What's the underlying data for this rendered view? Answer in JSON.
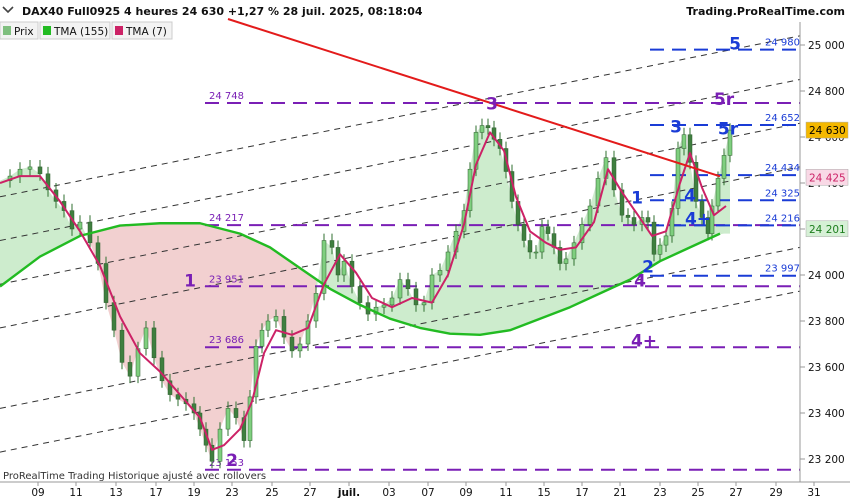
{
  "header": {
    "title": "DAX40 Full0925 4 heures 24 630 +1,27 % 28 juil. 2025, 08:18:04",
    "site": "Trading.ProRealTime.com"
  },
  "legend": [
    {
      "label": "Prix",
      "color": "#7fbf7f"
    },
    {
      "label": "TMA (155)",
      "color": "#22bb22"
    },
    {
      "label": "TMA (7)",
      "color": "#cc2266"
    }
  ],
  "footer": {
    "text": "ProRealTime Trading  Historique ajusté avec rollovers"
  },
  "chart_data": {
    "type": "line",
    "instrument": "DAX40 Full0925",
    "timeframe": "4 heures",
    "last_price": 24630,
    "change": "+1,27 %",
    "ylim": [
      23100,
      25100
    ],
    "x_tick_labels": [
      "09",
      "11",
      "13",
      "17",
      "19",
      "23",
      "25",
      "27",
      "juil.",
      "03",
      "07",
      "09",
      "11",
      "15",
      "17",
      "21",
      "23",
      "25",
      "27",
      "29",
      "31"
    ],
    "y_tick_labels": [
      "25 000",
      "24 800",
      "24 600",
      "24 400",
      "24 200",
      "24 000",
      "23 800",
      "23 600",
      "23 400",
      "23 200"
    ],
    "y_ticks": [
      25000,
      24800,
      24600,
      24400,
      24200,
      24000,
      23800,
      23600,
      23400,
      23200
    ],
    "price_path": [
      [
        0,
        24410
      ],
      [
        10,
        24430
      ],
      [
        20,
        24460
      ],
      [
        30,
        24470
      ],
      [
        40,
        24440
      ],
      [
        48,
        24370
      ],
      [
        56,
        24320
      ],
      [
        64,
        24280
      ],
      [
        72,
        24200
      ],
      [
        80,
        24230
      ],
      [
        90,
        24140
      ],
      [
        98,
        24050
      ],
      [
        106,
        23880
      ],
      [
        114,
        23760
      ],
      [
        122,
        23620
      ],
      [
        130,
        23560
      ],
      [
        138,
        23680
      ],
      [
        146,
        23770
      ],
      [
        154,
        23640
      ],
      [
        162,
        23540
      ],
      [
        170,
        23480
      ],
      [
        178,
        23460
      ],
      [
        186,
        23440
      ],
      [
        194,
        23400
      ],
      [
        200,
        23330
      ],
      [
        206,
        23260
      ],
      [
        212,
        23190
      ],
      [
        220,
        23330
      ],
      [
        228,
        23420
      ],
      [
        236,
        23380
      ],
      [
        244,
        23280
      ],
      [
        250,
        23470
      ],
      [
        256,
        23690
      ],
      [
        262,
        23760
      ],
      [
        268,
        23800
      ],
      [
        276,
        23820
      ],
      [
        284,
        23730
      ],
      [
        292,
        23670
      ],
      [
        300,
        23700
      ],
      [
        308,
        23800
      ],
      [
        316,
        23920
      ],
      [
        324,
        24150
      ],
      [
        332,
        24120
      ],
      [
        338,
        24000
      ],
      [
        344,
        24060
      ],
      [
        352,
        23950
      ],
      [
        360,
        23880
      ],
      [
        368,
        23830
      ],
      [
        376,
        23860
      ],
      [
        384,
        23870
      ],
      [
        392,
        23900
      ],
      [
        400,
        23980
      ],
      [
        408,
        23940
      ],
      [
        416,
        23870
      ],
      [
        424,
        23880
      ],
      [
        432,
        24000
      ],
      [
        440,
        24020
      ],
      [
        448,
        24100
      ],
      [
        456,
        24190
      ],
      [
        464,
        24280
      ],
      [
        470,
        24460
      ],
      [
        476,
        24620
      ],
      [
        482,
        24650
      ],
      [
        488,
        24640
      ],
      [
        494,
        24590
      ],
      [
        500,
        24550
      ],
      [
        506,
        24450
      ],
      [
        512,
        24320
      ],
      [
        518,
        24220
      ],
      [
        524,
        24150
      ],
      [
        530,
        24100
      ],
      [
        536,
        24100
      ],
      [
        542,
        24210
      ],
      [
        548,
        24180
      ],
      [
        554,
        24120
      ],
      [
        560,
        24050
      ],
      [
        566,
        24070
      ],
      [
        574,
        24140
      ],
      [
        582,
        24220
      ],
      [
        590,
        24300
      ],
      [
        598,
        24420
      ],
      [
        606,
        24510
      ],
      [
        614,
        24370
      ],
      [
        622,
        24260
      ],
      [
        628,
        24250
      ],
      [
        634,
        24220
      ],
      [
        642,
        24250
      ],
      [
        648,
        24230
      ],
      [
        654,
        24090
      ],
      [
        660,
        24130
      ],
      [
        666,
        24170
      ],
      [
        672,
        24290
      ],
      [
        678,
        24550
      ],
      [
        684,
        24610
      ],
      [
        690,
        24490
      ],
      [
        696,
        24320
      ],
      [
        702,
        24250
      ],
      [
        708,
        24180
      ],
      [
        712,
        24300
      ],
      [
        718,
        24420
      ],
      [
        724,
        24520
      ],
      [
        730,
        24630
      ]
    ],
    "series": [
      {
        "name": "TMA (155)",
        "color": "#22bb22",
        "points": [
          [
            0,
            23950
          ],
          [
            40,
            24080
          ],
          [
            80,
            24170
          ],
          [
            120,
            24215
          ],
          [
            160,
            24225
          ],
          [
            200,
            24225
          ],
          [
            240,
            24180
          ],
          [
            270,
            24120
          ],
          [
            300,
            24030
          ],
          [
            330,
            23940
          ],
          [
            360,
            23870
          ],
          [
            390,
            23810
          ],
          [
            420,
            23770
          ],
          [
            450,
            23745
          ],
          [
            480,
            23740
          ],
          [
            510,
            23760
          ],
          [
            540,
            23810
          ],
          [
            570,
            23860
          ],
          [
            600,
            23920
          ],
          [
            630,
            23980
          ],
          [
            660,
            24060
          ],
          [
            690,
            24120
          ],
          [
            720,
            24180
          ]
        ]
      },
      {
        "name": "TMA (7)",
        "color": "#cc2266",
        "points": [
          [
            0,
            24400
          ],
          [
            20,
            24430
          ],
          [
            40,
            24430
          ],
          [
            60,
            24320
          ],
          [
            80,
            24190
          ],
          [
            100,
            24040
          ],
          [
            120,
            23820
          ],
          [
            140,
            23660
          ],
          [
            160,
            23580
          ],
          [
            180,
            23480
          ],
          [
            200,
            23380
          ],
          [
            212,
            23240
          ],
          [
            224,
            23260
          ],
          [
            240,
            23330
          ],
          [
            252,
            23450
          ],
          [
            264,
            23660
          ],
          [
            276,
            23760
          ],
          [
            292,
            23740
          ],
          [
            308,
            23770
          ],
          [
            324,
            23960
          ],
          [
            340,
            24090
          ],
          [
            356,
            24010
          ],
          [
            372,
            23900
          ],
          [
            392,
            23860
          ],
          [
            412,
            23900
          ],
          [
            432,
            23880
          ],
          [
            448,
            24000
          ],
          [
            464,
            24220
          ],
          [
            476,
            24480
          ],
          [
            490,
            24620
          ],
          [
            504,
            24540
          ],
          [
            516,
            24340
          ],
          [
            530,
            24190
          ],
          [
            546,
            24140
          ],
          [
            560,
            24110
          ],
          [
            576,
            24120
          ],
          [
            594,
            24230
          ],
          [
            608,
            24460
          ],
          [
            622,
            24360
          ],
          [
            638,
            24260
          ],
          [
            652,
            24170
          ],
          [
            666,
            24190
          ],
          [
            680,
            24400
          ],
          [
            690,
            24530
          ],
          [
            702,
            24380
          ],
          [
            714,
            24260
          ],
          [
            726,
            24300
          ]
        ]
      }
    ],
    "trendlines": [
      {
        "kind": "resistance",
        "color": "#e31b1b",
        "from": [
          228,
          25113
        ],
        "to": [
          720,
          24429
        ]
      },
      {
        "kind": "channel",
        "color": "#333333",
        "offsets": [
          0,
          -190,
          -380,
          -570
        ],
        "from": [
          0,
          24340
        ],
        "to": [
          800,
          25040
        ]
      },
      {
        "kind": "lower-channel",
        "color": "#333333",
        "offsets": [
          0,
          -190
        ],
        "from": [
          0,
          23420
        ],
        "to": [
          800,
          24120
        ]
      }
    ],
    "levels": [
      {
        "value": 24980,
        "label": "24 980",
        "color": "#1a3cd6",
        "x_from": 650
      },
      {
        "value": 24748,
        "label": "24 748",
        "color": "#7a1fb5",
        "x_from": 205
      },
      {
        "value": 24652,
        "label": "24 652",
        "color": "#1a3cd6",
        "x_from": 650
      },
      {
        "value": 24434,
        "label": "24 434",
        "color": "#1a3cd6",
        "x_from": 650
      },
      {
        "value": 24325,
        "label": "24 325",
        "color": "#1a3cd6",
        "x_from": 650
      },
      {
        "value": 24217,
        "label": "24 217",
        "color": "#7a1fb5",
        "x_from": 205
      },
      {
        "value": 24216,
        "label": "24 216",
        "color": "#1a3cd6",
        "x_from": 650
      },
      {
        "value": 23997,
        "label": "23 997",
        "color": "#1a3cd6",
        "x_from": 650
      },
      {
        "value": 23951,
        "label": "23 951",
        "color": "#7a1fb5",
        "x_from": 205
      },
      {
        "value": 23686,
        "label": "23 686",
        "color": "#7a1fb5",
        "x_from": 205
      },
      {
        "value": 23153,
        "label": "23 153",
        "color": "#7a1fb5",
        "x_from": 205
      }
    ],
    "waves": [
      {
        "label": "1",
        "x": 190,
        "value": 23950,
        "color": "#7a1fb5"
      },
      {
        "label": "2",
        "x": 232,
        "value": 23170,
        "color": "#7a1fb5"
      },
      {
        "label": "3",
        "x": 492,
        "value": 24720,
        "color": "#7a1fb5"
      },
      {
        "label": "4",
        "x": 640,
        "value": 23950,
        "color": "#7a1fb5"
      },
      {
        "label": "4+",
        "x": 644,
        "value": 23690,
        "color": "#7a1fb5"
      },
      {
        "label": "5r",
        "x": 724,
        "value": 24740,
        "color": "#7a1fb5"
      },
      {
        "label": "5",
        "x": 735,
        "value": 24980,
        "color": "#1a3cd6"
      },
      {
        "label": "3",
        "x": 676,
        "value": 24620,
        "color": "#1a3cd6"
      },
      {
        "label": "5r",
        "x": 728,
        "value": 24610,
        "color": "#1a3cd6"
      },
      {
        "label": "1",
        "x": 637,
        "value": 24310,
        "color": "#1a3cd6"
      },
      {
        "label": "4",
        "x": 690,
        "value": 24320,
        "color": "#1a3cd6"
      },
      {
        "label": "4+",
        "x": 698,
        "value": 24220,
        "color": "#1a3cd6"
      },
      {
        "label": "2",
        "x": 648,
        "value": 24010,
        "color": "#1a3cd6"
      }
    ],
    "price_tags": [
      {
        "value": 24630,
        "label": "24 630",
        "bg": "#f4b800",
        "fg": "#000000"
      },
      {
        "value": 24425,
        "label": "24 425",
        "bg": "#f9d9e6",
        "fg": "#cc2266"
      },
      {
        "value": 24201,
        "label": "24 201",
        "bg": "#d6f0d6",
        "fg": "#1d7d1d"
      }
    ]
  }
}
